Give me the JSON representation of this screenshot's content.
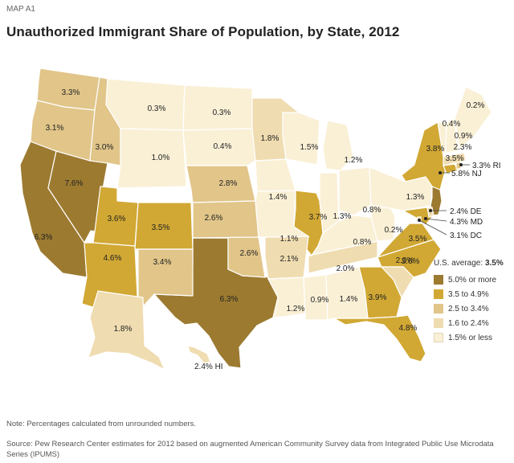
{
  "header": {
    "label": "MAP A1",
    "title": "Unauthorized Immigrant Share of Population, by State, 2012"
  },
  "legend": {
    "heading_prefix": "U.S. average:",
    "heading_value": "3.5%",
    "items": [
      {
        "label": "5.0% or more",
        "color": "#9c7a30"
      },
      {
        "label": "3.5 to 4.9%",
        "color": "#d1a834"
      },
      {
        "label": "2.5 to 3.4%",
        "color": "#e1c589"
      },
      {
        "label": "1.6 to 2.4%",
        "color": "#efdcb0"
      },
      {
        "label": "1.5% or less",
        "color": "#faf0d6"
      }
    ]
  },
  "states": {
    "WA": "3.3%",
    "OR": "3.1%",
    "CA": "6.3%",
    "NV": "7.6%",
    "ID": "3.0%",
    "MT": "0.3%",
    "WY": "1.0%",
    "UT": "3.6%",
    "AZ": "4.6%",
    "CO": "3.5%",
    "NM": "3.4%",
    "ND": "0.3%",
    "SD": "0.4%",
    "NE": "2.8%",
    "KS": "2.6%",
    "OK": "2.6%",
    "TX": "6.3%",
    "MN": "1.8%",
    "IA": "1.4%",
    "MO": "1.1%",
    "AR": "2.1%",
    "LA": "1.2%",
    "WI": "1.5%",
    "IL": "3.7%",
    "MI": "1.2%",
    "IN": "1.3%",
    "OH": "0.8%",
    "KY": "0.8%",
    "TN": "2.0%",
    "MS": "0.9%",
    "AL": "1.4%",
    "GA": "3.9%",
    "FL": "4.8%",
    "SC": "2.0%",
    "NC": "3.6%",
    "VA": "3.5%",
    "WV": "0.2%",
    "PA": "1.3%",
    "NY": "3.8%",
    "VT": "0.4%",
    "NH": "0.9%",
    "ME": "0.2%",
    "MA": "2.3%",
    "CT": "3.5%",
    "AK": "1.8%"
  },
  "callouts": {
    "RI": "3.3% RI",
    "NJ": "5.8% NJ",
    "DE": "2.4% DE",
    "MD": "4.3% MD",
    "DC": "3.1% DC",
    "HI": "2.4% HI"
  },
  "footer": {
    "note": "Note: Percentages calculated from unrounded numbers.",
    "source": "Source: Pew Research Center estimates for 2012 based on augmented American Community Survey data from Integrated Public Use Microdata Series (IPUMS)"
  }
}
